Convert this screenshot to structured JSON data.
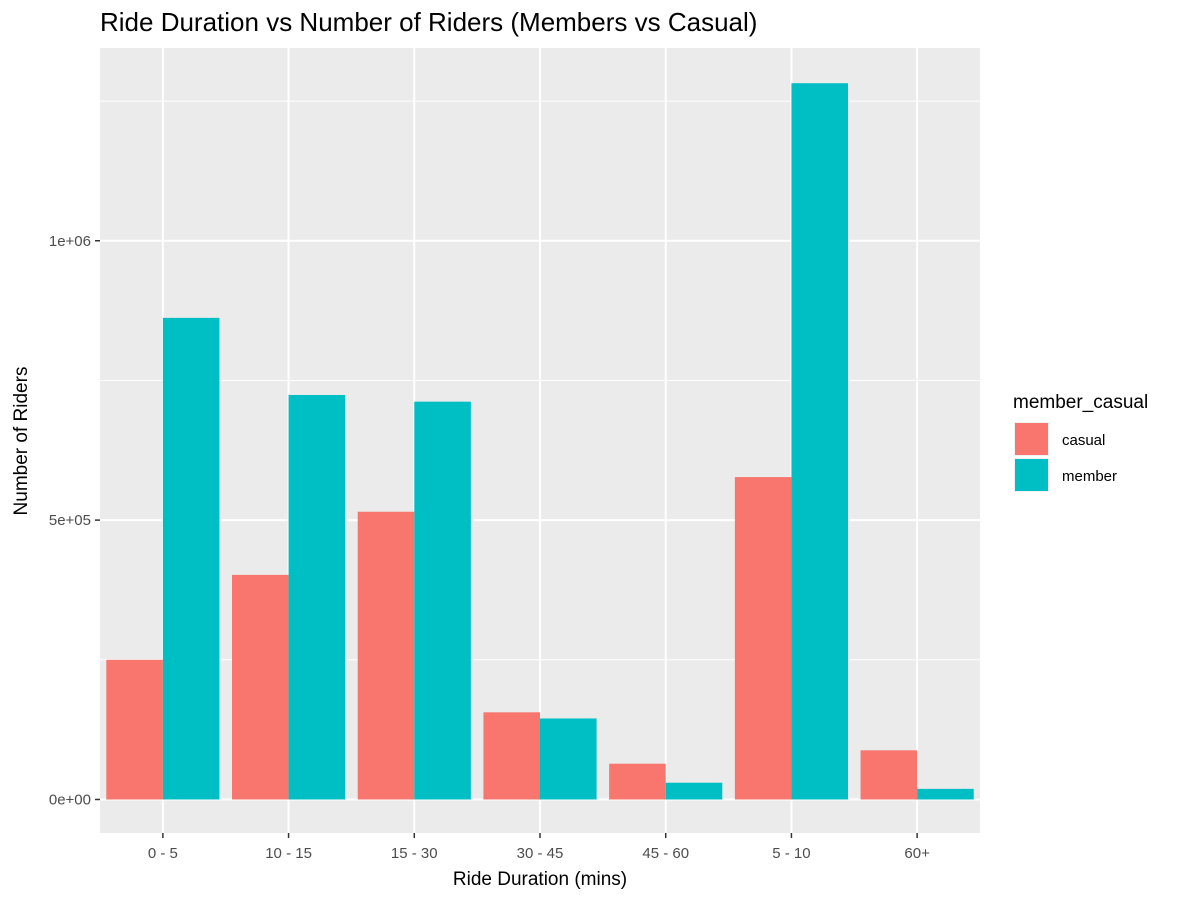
{
  "chart_data": {
    "type": "bar",
    "title": "Ride Duration vs Number of Riders (Members vs Casual)",
    "xlabel": "Ride Duration (mins)",
    "ylabel": "Number of Riders",
    "categories": [
      "0 - 5",
      "10 - 15",
      "15 - 30",
      "30 - 45",
      "45 - 60",
      "5 - 10",
      "60+"
    ],
    "series": [
      {
        "name": "casual",
        "color": "#F8766D",
        "values": [
          250000,
          402000,
          515000,
          156000,
          64000,
          577000,
          88000
        ]
      },
      {
        "name": "member",
        "color": "#00BFC4",
        "values": [
          862000,
          724000,
          712000,
          145000,
          30000,
          1282000,
          19000
        ]
      }
    ],
    "ylim": [
      -60000,
      1345000
    ],
    "yticks": [
      {
        "value": 0,
        "label": "0e+00"
      },
      {
        "value": 500000,
        "label": "5e+05"
      },
      {
        "value": 1000000,
        "label": "1e+06"
      }
    ],
    "y_minor_ticks": [
      250000,
      750000,
      1250000
    ],
    "legend": {
      "title": "member_casual",
      "position": "right"
    },
    "grid": true,
    "panel_background": "#EBEBEB"
  }
}
